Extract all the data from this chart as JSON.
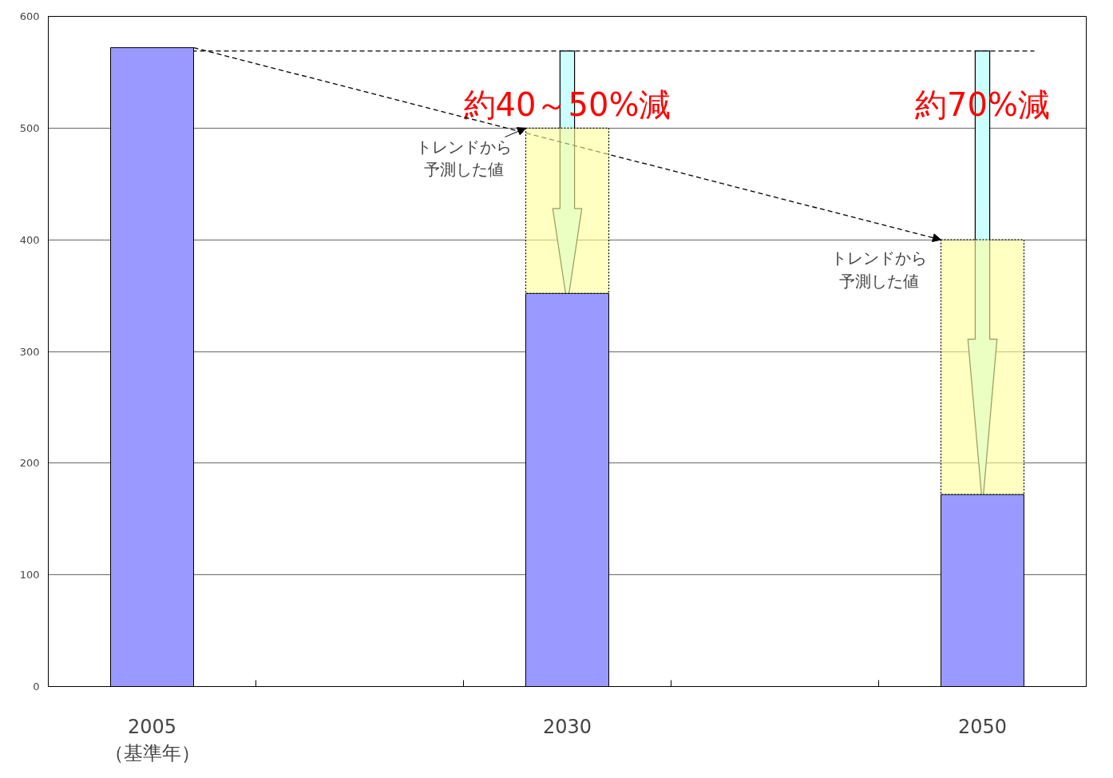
{
  "chart_data": {
    "type": "bar",
    "stacked": true,
    "categories": [
      "2005\n（基準年）",
      null,
      "2030",
      null,
      "2050"
    ],
    "series": [
      {
        "color": "#9999ff",
        "values": [
          572,
          null,
          352,
          null,
          172
        ]
      },
      {
        "color": "#ffff99",
        "values": [
          null,
          null,
          148,
          null,
          228
        ]
      }
    ],
    "ref_lines": [
      {
        "axis": "y",
        "value": 569,
        "line_style": "dashed",
        "color": "#000000"
      }
    ],
    "annotations": [
      "約40～50%減",
      "約70%減",
      "トレンドから予測した値",
      "トレンドから予測した値"
    ],
    "ylim": [
      0,
      600
    ],
    "yticks": [
      0,
      100,
      200,
      300,
      400,
      500,
      600
    ],
    "grid": "y",
    "legend": false
  }
}
